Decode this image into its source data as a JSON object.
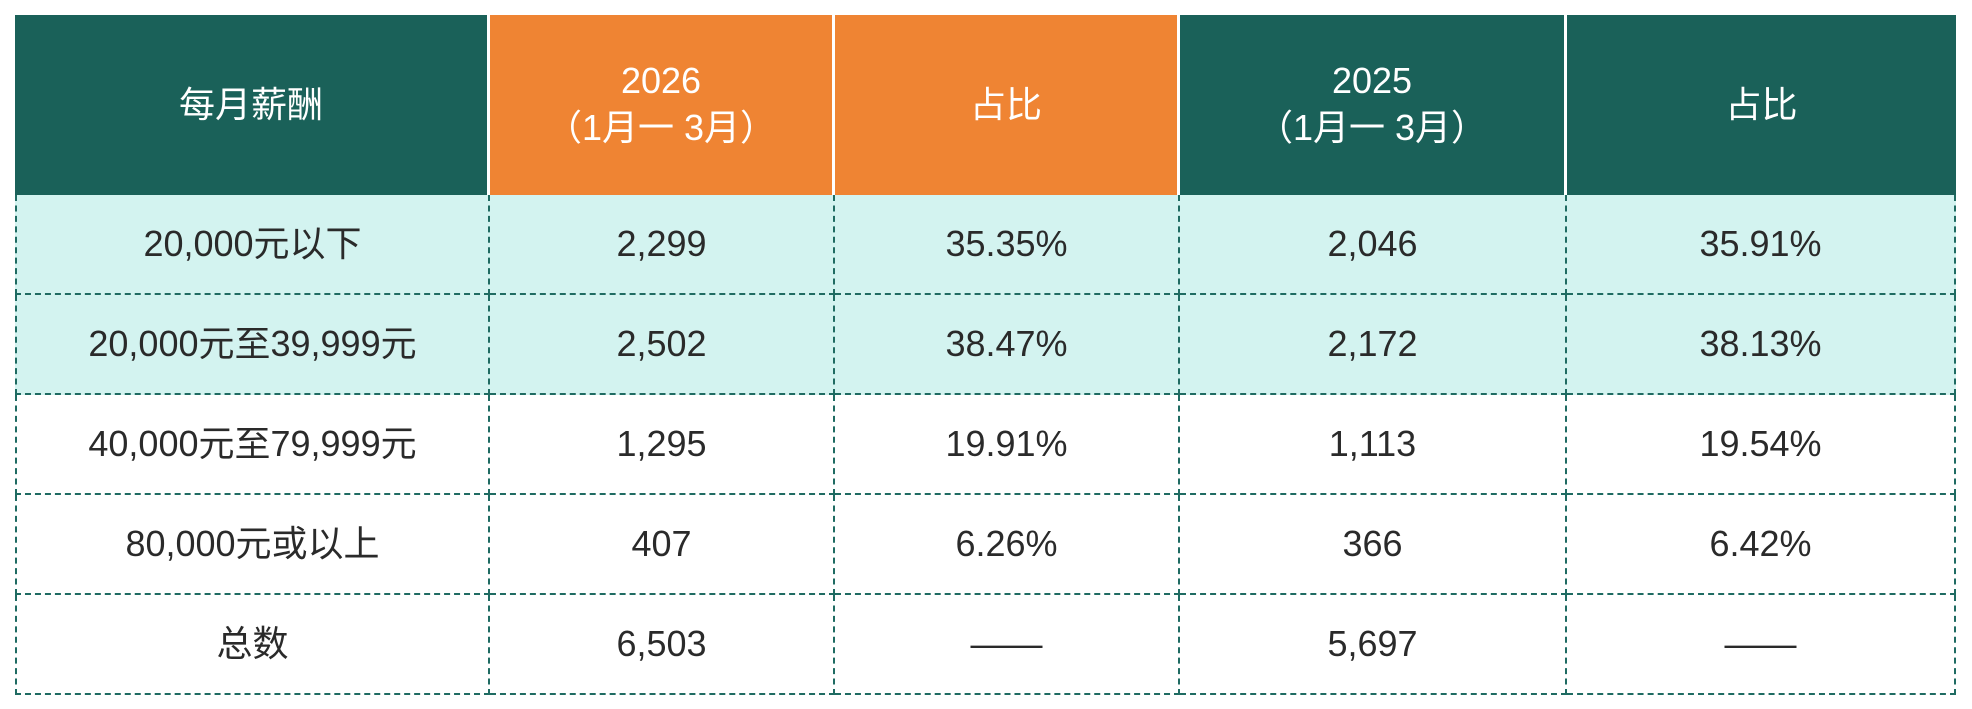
{
  "table": {
    "header": [
      [
        "每月薪酬"
      ],
      [
        "2026",
        "（1月一 3月）"
      ],
      [
        "占比"
      ],
      [
        "2025",
        "（1月一 3月）"
      ],
      [
        "占比"
      ]
    ],
    "rows": [
      [
        "20,000元以下",
        "2,299",
        "35.35%",
        "2,046",
        "35.91%"
      ],
      [
        "20,000元至39,999元",
        "2,502",
        "38.47%",
        "2,172",
        "38.13%"
      ],
      [
        "40,000元至79,999元",
        "1,295",
        "19.91%",
        "1,113",
        "19.54%"
      ],
      [
        "80,000元或以上",
        "407",
        "6.26%",
        "366",
        "6.42%"
      ],
      [
        "总数",
        "6,503",
        "——",
        "5,697",
        "——"
      ]
    ]
  }
}
